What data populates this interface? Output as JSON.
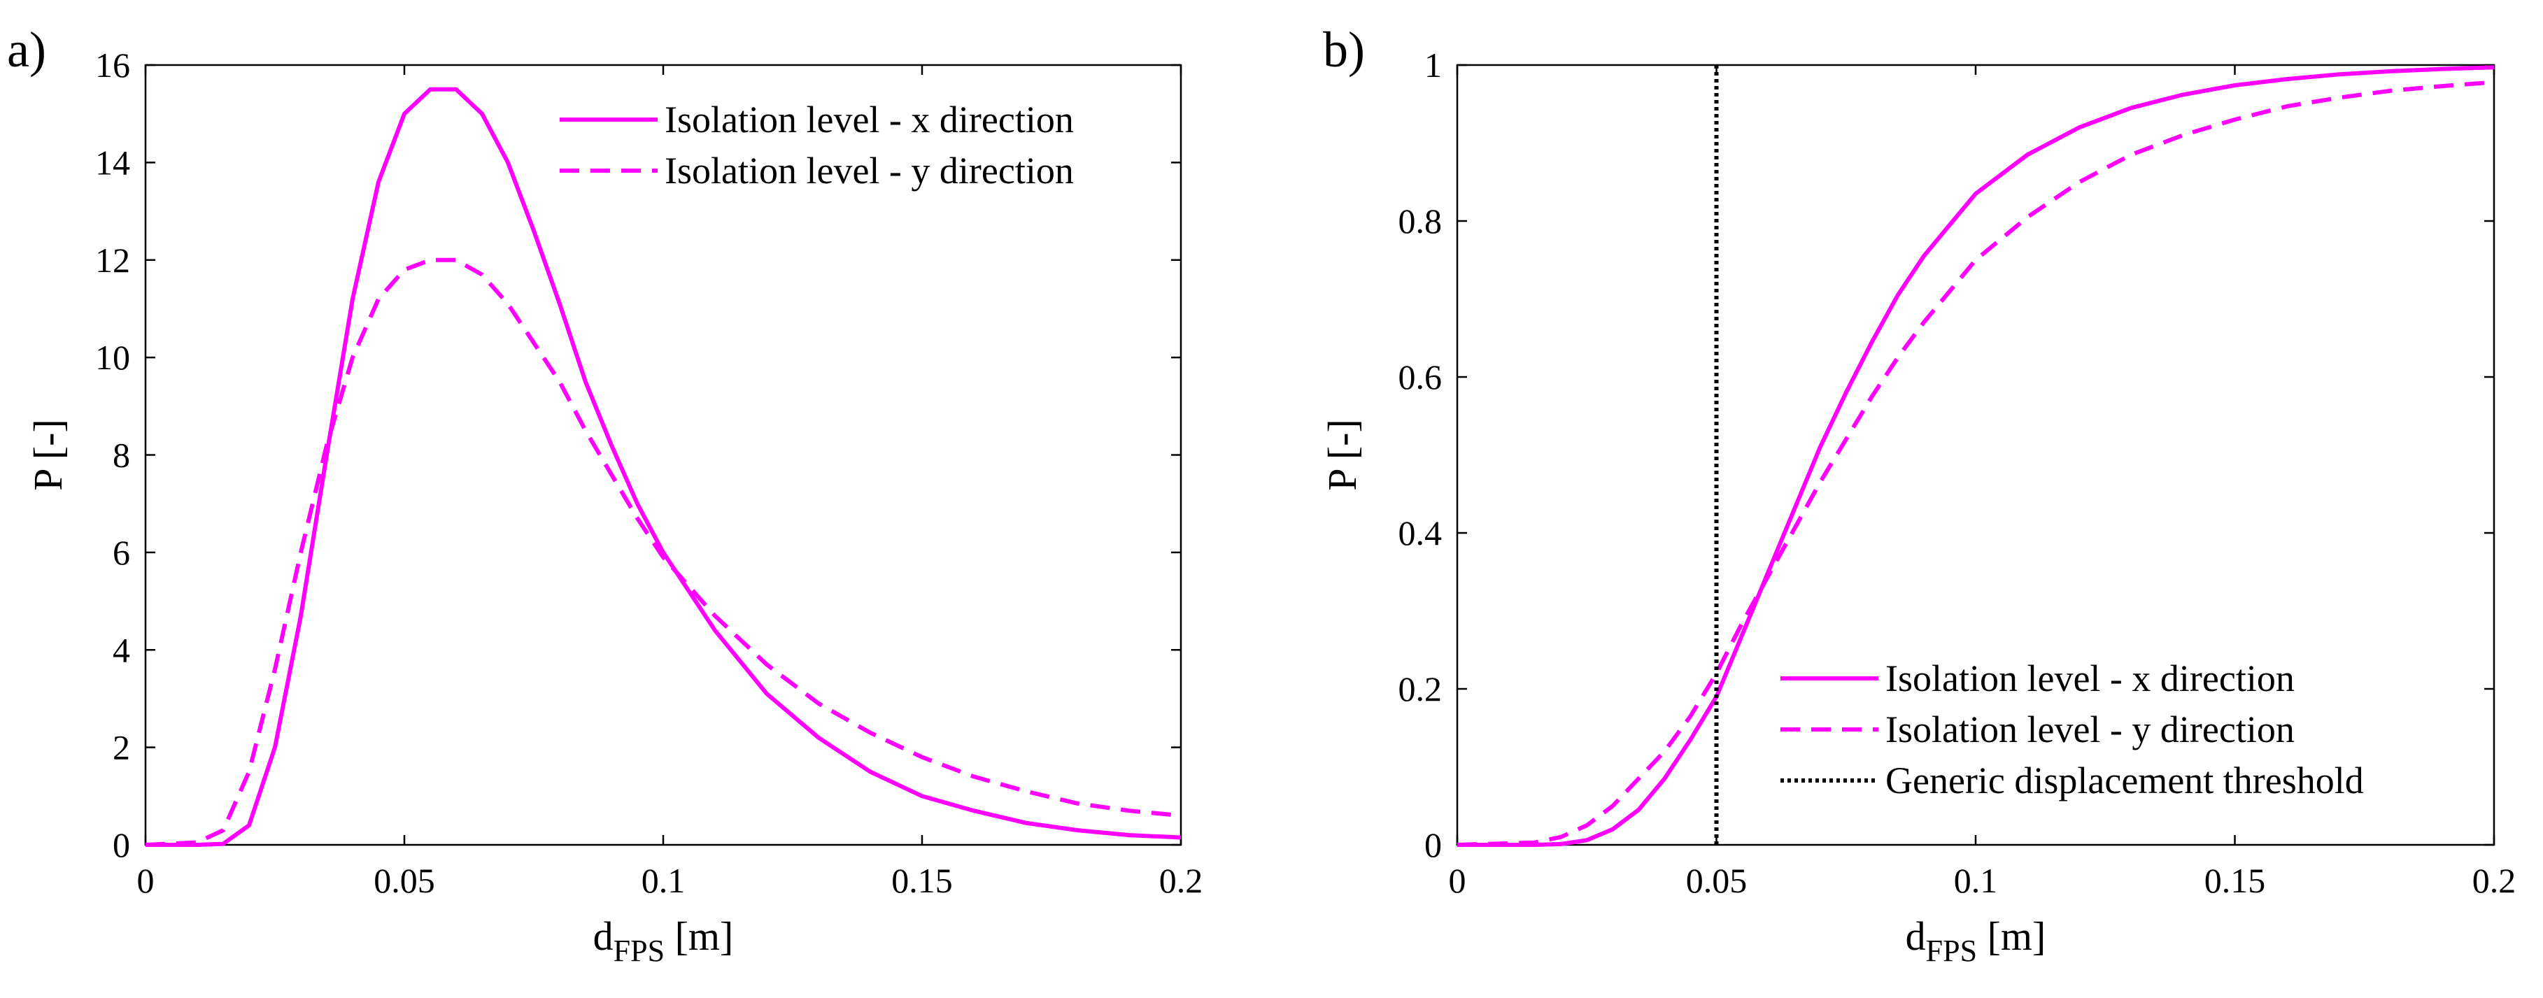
{
  "figure": {
    "background_color": "#ffffff"
  },
  "chart_data": [
    {
      "type": "line",
      "panel_label": "a)",
      "xlabel": "d",
      "xlabel_subscript": "FPS",
      "xlabel_units": "[m]",
      "ylabel": "P [-]",
      "xlim": [
        0,
        0.2
      ],
      "ylim": [
        0,
        16
      ],
      "xticks": [
        0,
        0.05,
        0.1,
        0.15,
        0.2
      ],
      "xtick_labels": [
        "0",
        "0.05",
        "0.1",
        "0.15",
        "0.2"
      ],
      "yticks": [
        0,
        2,
        4,
        6,
        8,
        10,
        12,
        14,
        16
      ],
      "ytick_labels": [
        "0",
        "2",
        "4",
        "6",
        "8",
        "10",
        "12",
        "14",
        "16"
      ],
      "grid": false,
      "legend_position": "top-right",
      "x": [
        0,
        0.01,
        0.015,
        0.02,
        0.025,
        0.03,
        0.035,
        0.04,
        0.045,
        0.05,
        0.055,
        0.06,
        0.065,
        0.07,
        0.075,
        0.08,
        0.085,
        0.09,
        0.095,
        0.1,
        0.11,
        0.12,
        0.13,
        0.14,
        0.15,
        0.16,
        0.17,
        0.18,
        0.19,
        0.2
      ],
      "series": [
        {
          "name": "Isolation level - x direction",
          "style": "solid",
          "color": "#ff00ff",
          "values": [
            0,
            0,
            0.02,
            0.4,
            2.0,
            4.7,
            8.0,
            11.2,
            13.6,
            15.0,
            15.5,
            15.5,
            15.0,
            14.0,
            12.6,
            11.1,
            9.5,
            8.2,
            7.0,
            6.0,
            4.4,
            3.1,
            2.2,
            1.5,
            1.0,
            0.7,
            0.45,
            0.3,
            0.2,
            0.15
          ]
        },
        {
          "name": "Isolation level - y direction",
          "style": "dashed",
          "color": "#ff00ff",
          "values": [
            0,
            0.05,
            0.3,
            1.5,
            3.6,
            6.0,
            8.2,
            10.0,
            11.2,
            11.8,
            12.0,
            12.0,
            11.7,
            11.1,
            10.3,
            9.5,
            8.5,
            7.6,
            6.7,
            5.9,
            4.7,
            3.7,
            2.9,
            2.3,
            1.8,
            1.4,
            1.1,
            0.85,
            0.7,
            0.6
          ]
        }
      ]
    },
    {
      "type": "line",
      "panel_label": "b)",
      "xlabel": "d",
      "xlabel_subscript": "FPS",
      "xlabel_units": "[m]",
      "ylabel": "P [-]",
      "xlim": [
        0,
        0.2
      ],
      "ylim": [
        0,
        1
      ],
      "xticks": [
        0,
        0.05,
        0.1,
        0.15,
        0.2
      ],
      "xtick_labels": [
        "0",
        "0.05",
        "0.1",
        "0.15",
        "0.2"
      ],
      "yticks": [
        0,
        0.2,
        0.4,
        0.6,
        0.8,
        1
      ],
      "ytick_labels": [
        "0",
        "0.2",
        "0.4",
        "0.6",
        "0.8",
        "1"
      ],
      "grid": false,
      "legend_position": "bottom-right",
      "x": [
        0,
        0.015,
        0.02,
        0.025,
        0.03,
        0.035,
        0.04,
        0.045,
        0.05,
        0.055,
        0.06,
        0.065,
        0.07,
        0.075,
        0.08,
        0.085,
        0.09,
        0.095,
        0.1,
        0.11,
        0.12,
        0.13,
        0.14,
        0.15,
        0.16,
        0.17,
        0.18,
        0.19,
        0.2
      ],
      "series": [
        {
          "name": "Isolation level - x direction",
          "style": "solid",
          "color": "#ff00ff",
          "values": [
            0,
            0,
            0.001,
            0.006,
            0.02,
            0.045,
            0.085,
            0.135,
            0.19,
            0.27,
            0.35,
            0.43,
            0.51,
            0.58,
            0.645,
            0.705,
            0.755,
            0.795,
            0.835,
            0.885,
            0.92,
            0.945,
            0.962,
            0.974,
            0.982,
            0.988,
            0.992,
            0.995,
            0.997
          ]
        },
        {
          "name": "Isolation level - y direction",
          "style": "dashed",
          "color": "#ff00ff",
          "values": [
            0,
            0.003,
            0.01,
            0.025,
            0.05,
            0.085,
            0.12,
            0.165,
            0.22,
            0.285,
            0.345,
            0.405,
            0.465,
            0.52,
            0.575,
            0.625,
            0.67,
            0.71,
            0.75,
            0.805,
            0.85,
            0.885,
            0.91,
            0.93,
            0.947,
            0.958,
            0.967,
            0.973,
            0.978
          ]
        },
        {
          "name": "Generic displacement threshold",
          "style": "dotted",
          "color": "#000000",
          "vertical_x": 0.05
        }
      ]
    }
  ]
}
